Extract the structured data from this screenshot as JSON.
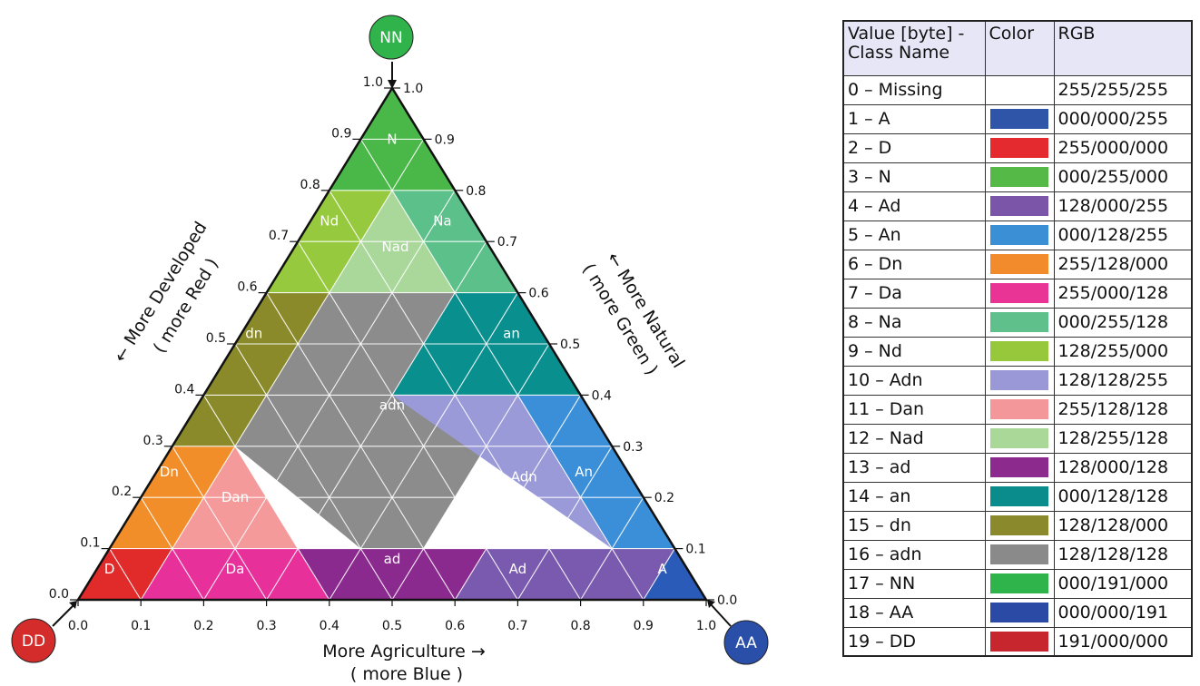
{
  "corners": {
    "top": {
      "label": "NN",
      "color": "#2fb34a"
    },
    "left": {
      "label": "DD",
      "color": "#d42b2b"
    },
    "right": {
      "label": "AA",
      "color": "#2a4fa8"
    }
  },
  "ticks": {
    "top_values": [
      "0.0",
      "0.1",
      "0.2",
      "0.3",
      "0.4",
      "0.5",
      "0.6",
      "0.7",
      "0.8",
      "0.9",
      "1.0"
    ],
    "left_edge_labels": [
      "0.0",
      "0.1",
      "0.2",
      "0.3",
      "0.4",
      "0.5",
      "0.6",
      "0.7",
      "0.8",
      "0.9",
      "1.0"
    ],
    "right_edge_labels": [
      "1.0",
      "0.9",
      "0.8",
      "0.7",
      "0.6",
      "0.5",
      "0.4",
      "0.3",
      "0.2",
      "0.1",
      "0.0"
    ],
    "bottom_labels": [
      "0.0",
      "0.1",
      "0.2",
      "0.3",
      "0.4",
      "0.5",
      "0.6",
      "0.7",
      "0.8",
      "0.9",
      "1.0"
    ]
  },
  "axis_titles": {
    "left_line1": "← More Developed",
    "left_line2": "( more Red )",
    "right_line1": "← More Natural",
    "right_line2": "( more Green )",
    "bottom_line1": "More Agriculture  →",
    "bottom_line2": "( more Blue )"
  },
  "regions": [
    {
      "label": "N",
      "color": "#4ab848"
    },
    {
      "label": "Nd",
      "color": "#96c93d"
    },
    {
      "label": "Na",
      "color": "#5cc08a"
    },
    {
      "label": "Nad",
      "color": "#a9d89a"
    },
    {
      "label": "dn",
      "color": "#8a8a2a"
    },
    {
      "label": "an",
      "color": "#0a8f8f"
    },
    {
      "label": "adn",
      "color": "#8c8c8c"
    },
    {
      "label": "Dn",
      "color": "#f28e2a"
    },
    {
      "label": "An",
      "color": "#3b8fd9"
    },
    {
      "label": "Dan",
      "color": "#f59a9a"
    },
    {
      "label": "Adn",
      "color": "#9a9ad9"
    },
    {
      "label": "D",
      "color": "#e12a2a"
    },
    {
      "label": "Da",
      "color": "#e8309a"
    },
    {
      "label": "ad",
      "color": "#8a2a8e"
    },
    {
      "label": "Ad",
      "color": "#7a5aaf"
    },
    {
      "label": "A",
      "color": "#2a5bb8"
    }
  ],
  "legend": {
    "headers": [
      "Value   [byte] - Class Name",
      "Color",
      "RGB"
    ],
    "rows": [
      {
        "name": "0 – Missing",
        "rgb": "255/255/255",
        "color": "#ffffff"
      },
      {
        "name": "1 – A",
        "rgb": "000/000/255",
        "color": "#2f55a8"
      },
      {
        "name": "2 – D",
        "rgb": "255/000/000",
        "color": "#e52a2f"
      },
      {
        "name": "3 – N",
        "rgb": "000/255/000",
        "color": "#55b947"
      },
      {
        "name": "4 – Ad",
        "rgb": "128/000/255",
        "color": "#7b55a8"
      },
      {
        "name": "5 – An",
        "rgb": "000/128/255",
        "color": "#3b8fd4"
      },
      {
        "name": "6 – Dn",
        "rgb": "255/128/000",
        "color": "#f28b2c"
      },
      {
        "name": "7 – Da",
        "rgb": "255/000/128",
        "color": "#ea3495"
      },
      {
        "name": "8 – Na",
        "rgb": "000/255/128",
        "color": "#5fc08b"
      },
      {
        "name": "9 – Nd",
        "rgb": "128/255/000",
        "color": "#97c83c"
      },
      {
        "name": "10 – Adn",
        "rgb": "128/128/255",
        "color": "#9a98d6"
      },
      {
        "name": "11 – Dan",
        "rgb": "255/128/128",
        "color": "#f4979a"
      },
      {
        "name": "12 – Nad",
        "rgb": "128/255/128",
        "color": "#a9d899"
      },
      {
        "name": "13 – ad",
        "rgb": "128/000/128",
        "color": "#8c2a8d"
      },
      {
        "name": "14 – an",
        "rgb": "000/128/128",
        "color": "#0a8c8c"
      },
      {
        "name": "15 – dn",
        "rgb": "128/128/000",
        "color": "#8a8a2c"
      },
      {
        "name": "16 – adn",
        "rgb": "128/128/128",
        "color": "#8a8a8a"
      },
      {
        "name": "17 – NN",
        "rgb": "000/191/000",
        "color": "#2eb44a"
      },
      {
        "name": "18 – AA",
        "rgb": "000/000/191",
        "color": "#2a4aa6"
      },
      {
        "name": "19 – DD",
        "rgb": "191/000/000",
        "color": "#c8262e"
      }
    ]
  }
}
